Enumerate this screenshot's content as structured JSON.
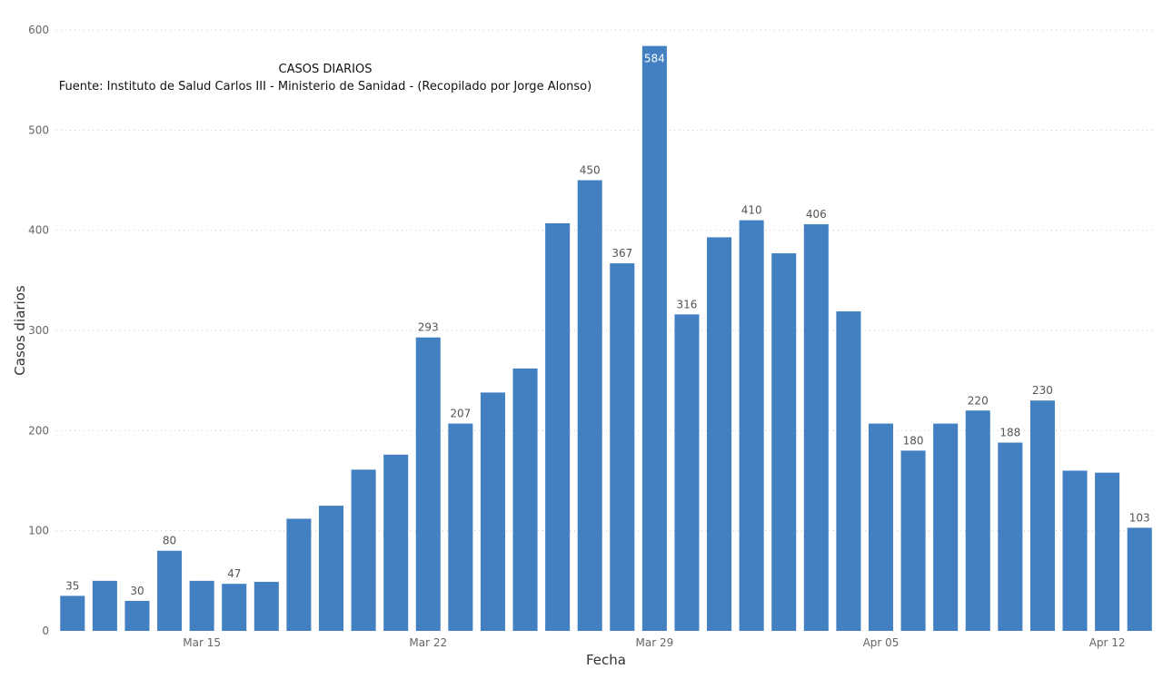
{
  "chart_data": {
    "type": "bar",
    "title": "CASOS DIARIOS",
    "subtitle": "Fuente: Instituto de Salud Carlos III - Ministerio de Sanidad - (Recopilado por Jorge Alonso)",
    "xlabel": "Fecha",
    "ylabel": "Casos diarios",
    "ylim": [
      0,
      600
    ],
    "yticks": [
      0,
      100,
      200,
      300,
      400,
      500,
      600
    ],
    "grid": true,
    "bar_color": "#4280c2",
    "x_tick_labels": [
      {
        "index": 4,
        "label": "Mar 15"
      },
      {
        "index": 11,
        "label": "Mar 22"
      },
      {
        "index": 18,
        "label": "Mar 29"
      },
      {
        "index": 25,
        "label": "Apr 05"
      },
      {
        "index": 32,
        "label": "Apr 12"
      }
    ],
    "values": [
      35,
      50,
      30,
      80,
      50,
      47,
      49,
      112,
      125,
      161,
      176,
      293,
      207,
      238,
      262,
      407,
      450,
      367,
      584,
      316,
      393,
      410,
      377,
      406,
      319,
      207,
      180,
      207,
      220,
      188,
      230,
      160,
      158,
      103
    ],
    "labeled_indices": [
      0,
      2,
      3,
      5,
      11,
      12,
      16,
      17,
      18,
      19,
      21,
      23,
      26,
      28,
      29,
      30,
      33
    ]
  }
}
